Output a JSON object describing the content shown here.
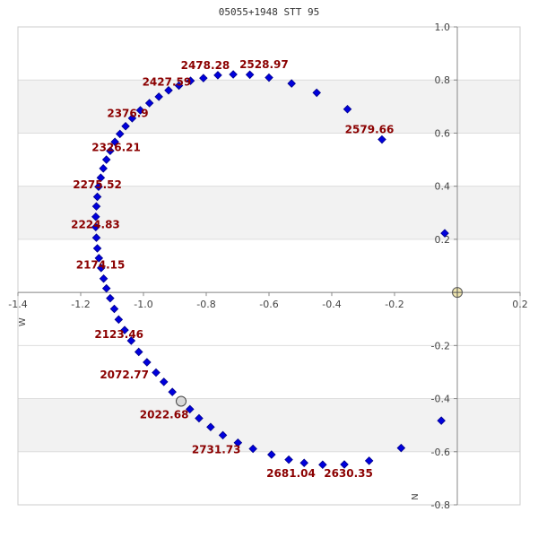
{
  "chart_data": {
    "type": "scatter",
    "title": "05055+1948 STT  95",
    "xlim": [
      -1.4,
      0.2
    ],
    "ylim": [
      -0.8,
      1.0
    ],
    "x_axis_inverted": false,
    "y_axis_inverted": true,
    "x_ticks": [
      "-1.4",
      "-1.2",
      "-1.0",
      "-0.8",
      "-0.6",
      "-0.4",
      "-0.2",
      "0.2"
    ],
    "y_ticks": [
      "1.0",
      "0.8",
      "0.6",
      "0.4",
      "0.2",
      "-0.2",
      "-0.4",
      "-0.6",
      "-0.8"
    ],
    "x_axis_letter": "W",
    "y_axis_letter": "N",
    "grid": "alternating horizontal bands",
    "colors": {
      "points": "#0000dd",
      "point_outline": "#00008b",
      "labels": "#8b0000",
      "band": "#f2f2f2",
      "axis": "#888888",
      "origin_marker": "#f0e6b0",
      "current_marker": "#d8d8d8"
    },
    "points": [
      {
        "x": -0.88,
        "y": -0.41
      },
      {
        "x": -0.852,
        "y": -0.44
      },
      {
        "x": -0.823,
        "y": -0.474
      },
      {
        "x": -0.786,
        "y": -0.507
      },
      {
        "x": -0.747,
        "y": -0.538
      },
      {
        "x": -0.699,
        "y": -0.566
      },
      {
        "x": -0.651,
        "y": -0.589
      },
      {
        "x": -0.592,
        "y": -0.611
      },
      {
        "x": -0.537,
        "y": -0.63
      },
      {
        "x": -0.488,
        "y": -0.642
      },
      {
        "x": -0.429,
        "y": -0.649
      },
      {
        "x": -0.36,
        "y": -0.648
      },
      {
        "x": -0.281,
        "y": -0.634
      },
      {
        "x": -0.179,
        "y": -0.586
      },
      {
        "x": -0.051,
        "y": -0.483
      },
      {
        "x": -0.04,
        "y": 0.223
      },
      {
        "x": -0.24,
        "y": 0.576
      },
      {
        "x": -0.35,
        "y": 0.69
      },
      {
        "x": -0.448,
        "y": 0.752
      },
      {
        "x": -0.528,
        "y": 0.787
      },
      {
        "x": -0.6,
        "y": 0.809
      },
      {
        "x": -0.661,
        "y": 0.82
      },
      {
        "x": -0.714,
        "y": 0.821
      },
      {
        "x": -0.763,
        "y": 0.818
      },
      {
        "x": -0.809,
        "y": 0.807
      },
      {
        "x": -0.85,
        "y": 0.797
      },
      {
        "x": -0.887,
        "y": 0.779
      },
      {
        "x": -0.92,
        "y": 0.761
      },
      {
        "x": -0.951,
        "y": 0.737
      },
      {
        "x": -0.981,
        "y": 0.713
      },
      {
        "x": -1.01,
        "y": 0.686
      },
      {
        "x": -1.036,
        "y": 0.656
      },
      {
        "x": -1.057,
        "y": 0.626
      },
      {
        "x": -1.075,
        "y": 0.597
      },
      {
        "x": -1.091,
        "y": 0.567
      },
      {
        "x": -1.106,
        "y": 0.533
      },
      {
        "x": -1.118,
        "y": 0.5
      },
      {
        "x": -1.128,
        "y": 0.467
      },
      {
        "x": -1.136,
        "y": 0.432
      },
      {
        "x": -1.143,
        "y": 0.398
      },
      {
        "x": -1.147,
        "y": 0.36
      },
      {
        "x": -1.15,
        "y": 0.324
      },
      {
        "x": -1.152,
        "y": 0.285
      },
      {
        "x": -1.152,
        "y": 0.246
      },
      {
        "x": -1.15,
        "y": 0.206
      },
      {
        "x": -1.147,
        "y": 0.166
      },
      {
        "x": -1.142,
        "y": 0.129
      },
      {
        "x": -1.135,
        "y": 0.092
      },
      {
        "x": -1.127,
        "y": 0.052
      },
      {
        "x": -1.118,
        "y": 0.015
      },
      {
        "x": -1.106,
        "y": -0.022
      },
      {
        "x": -1.093,
        "y": -0.062
      },
      {
        "x": -1.079,
        "y": -0.102
      },
      {
        "x": -1.06,
        "y": -0.142
      },
      {
        "x": -1.039,
        "y": -0.182
      },
      {
        "x": -1.015,
        "y": -0.224
      },
      {
        "x": -0.989,
        "y": -0.263
      },
      {
        "x": -0.96,
        "y": -0.302
      },
      {
        "x": -0.935,
        "y": -0.337
      },
      {
        "x": -0.908,
        "y": -0.375
      }
    ],
    "labels": [
      {
        "text": "2022.68",
        "x": -0.934,
        "y": -0.461
      },
      {
        "text": "2072.77",
        "x": -1.061,
        "y": -0.311
      },
      {
        "text": "2123.46",
        "x": -1.078,
        "y": -0.159
      },
      {
        "text": "2174.15",
        "x": -1.137,
        "y": 0.103
      },
      {
        "text": "2224.83",
        "x": -1.153,
        "y": 0.256
      },
      {
        "text": "2275.52",
        "x": -1.147,
        "y": 0.405
      },
      {
        "text": "2326.21",
        "x": -1.087,
        "y": 0.545
      },
      {
        "text": "2376.9",
        "x": -1.05,
        "y": 0.674
      },
      {
        "text": "2427.59",
        "x": -0.926,
        "y": 0.792
      },
      {
        "text": "2478.28",
        "x": -0.803,
        "y": 0.854
      },
      {
        "text": "2528.97",
        "x": -0.616,
        "y": 0.858
      },
      {
        "text": "2579.66",
        "x": -0.28,
        "y": 0.613
      },
      {
        "text": "2630.35",
        "x": -0.347,
        "y": -0.681
      },
      {
        "text": "2681.04",
        "x": -0.53,
        "y": -0.681
      },
      {
        "text": "2731.73",
        "x": -0.768,
        "y": -0.592
      }
    ],
    "origin_marker": {
      "x": 0.0,
      "y": 0.0
    },
    "current_position": {
      "x": -0.88,
      "y": -0.41
    }
  }
}
